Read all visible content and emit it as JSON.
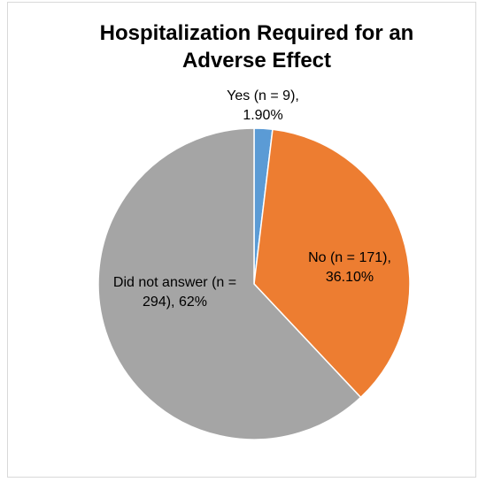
{
  "chart_data": {
    "type": "pie",
    "title": "Hospitalization Required for an Adverse Effect",
    "categories": [
      "Yes (n = 9),",
      "No (n = 171),",
      "Did not answer (n = 294),"
    ],
    "values": [
      1.9,
      36.1,
      62
    ],
    "value_labels": [
      "1.90%",
      "36.10%",
      "62%"
    ],
    "colors": [
      "#5b9bd5",
      "#ed7d31",
      "#a5a5a5"
    ]
  }
}
